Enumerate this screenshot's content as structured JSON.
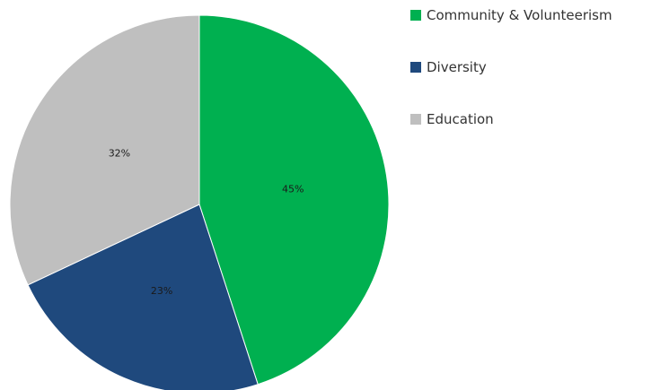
{
  "chart_data": {
    "type": "pie",
    "title": "",
    "start_angle": "12 o'clock",
    "direction": "clockwise",
    "legend_position": "top-right",
    "categories": [
      "Community & Volunteerism",
      "Diversity",
      "Education"
    ],
    "values": [
      45,
      23,
      32
    ],
    "data_labels": [
      "45%",
      "23%",
      "32%"
    ],
    "colors": [
      "#00b050",
      "#1f497d",
      "#bfbfbf"
    ]
  }
}
